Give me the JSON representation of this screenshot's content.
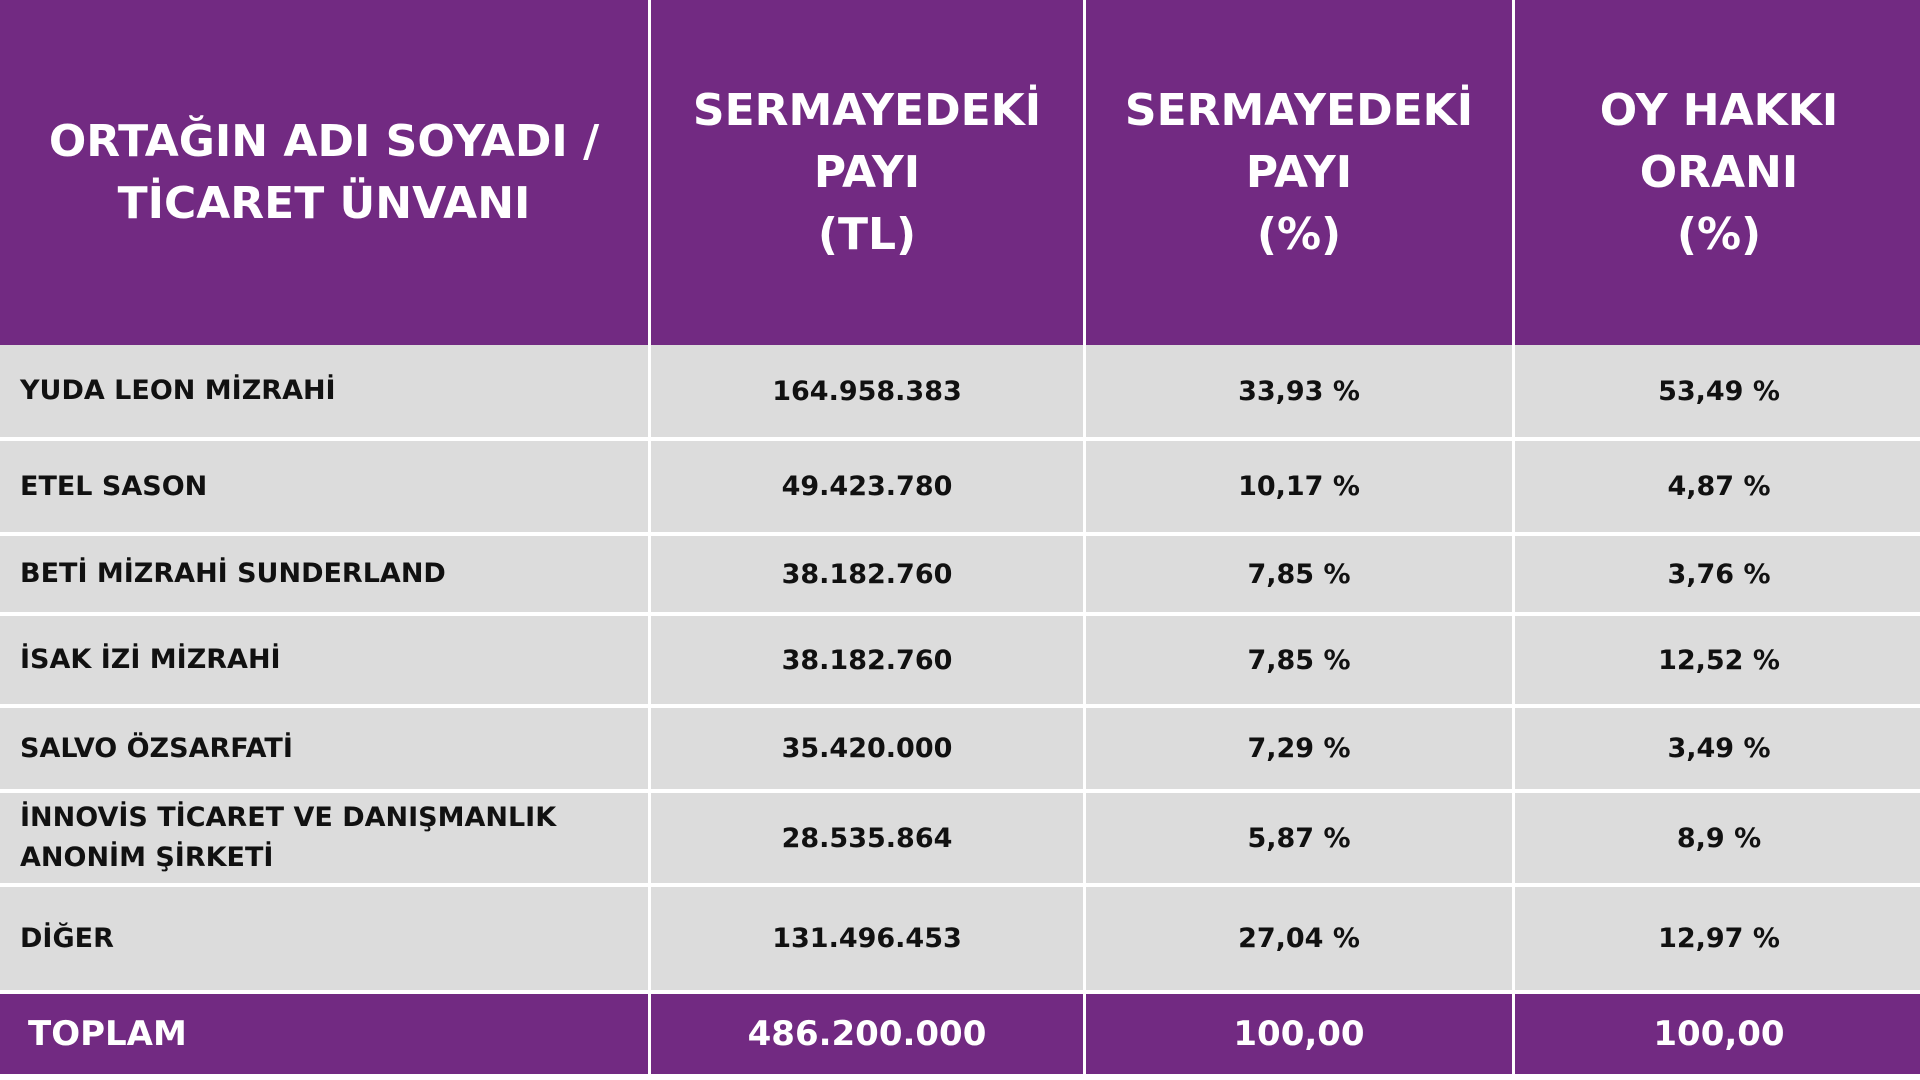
{
  "header": {
    "col1": [
      "ORTAĞIN ADI SOYADI /",
      "TİCARET ÜNVANI"
    ],
    "col2": [
      "SERMAYEDEKİ",
      "PAYI",
      "(TL)"
    ],
    "col3": [
      "SERMAYEDEKİ",
      "PAYI",
      "(%)"
    ],
    "col4": [
      "OY HAKKI",
      "ORANI",
      "(%)"
    ]
  },
  "rows": [
    {
      "name": "YUDA LEON MİZRAHİ",
      "capital_tl": "164.958.383",
      "capital_pct": "33,93 %",
      "vote_pct": "53,49 %"
    },
    {
      "name": "ETEL SASON",
      "capital_tl": "49.423.780",
      "capital_pct": "10,17 %",
      "vote_pct": "4,87 %"
    },
    {
      "name": "BETİ MİZRAHİ SUNDERLAND",
      "capital_tl": "38.182.760",
      "capital_pct": "7,85 %",
      "vote_pct": "3,76 %"
    },
    {
      "name": "İSAK İZİ MİZRAHİ",
      "capital_tl": "38.182.760",
      "capital_pct": "7,85 %",
      "vote_pct": "12,52 %"
    },
    {
      "name": "SALVO ÖZSARFATİ",
      "capital_tl": "35.420.000",
      "capital_pct": "7,29 %",
      "vote_pct": "3,49 %"
    },
    {
      "name": "İNNOVİS TİCARET VE DANIŞMANLIK ANONİM ŞİRKETİ",
      "capital_tl": "28.535.864",
      "capital_pct": "5,87 %",
      "vote_pct": "8,9 %"
    },
    {
      "name": "DİĞER",
      "capital_tl": "131.496.453",
      "capital_pct": "27,04 %",
      "vote_pct": "12,97 %"
    }
  ],
  "total": {
    "name": "TOPLAM",
    "capital_tl": "486.200.000",
    "capital_pct": "100,00",
    "vote_pct": "100,00"
  },
  "colors": {
    "header_bg": "#722a82",
    "row_bg": "#dcdcdc",
    "text": "#111111",
    "header_text": "#ffffff"
  }
}
